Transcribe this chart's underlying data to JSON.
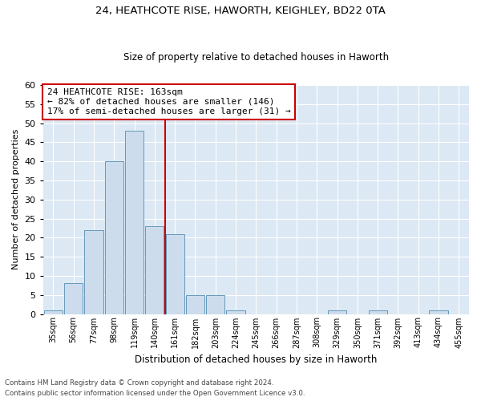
{
  "title1": "24, HEATHCOTE RISE, HAWORTH, KEIGHLEY, BD22 0TA",
  "title2": "Size of property relative to detached houses in Haworth",
  "xlabel": "Distribution of detached houses by size in Haworth",
  "ylabel": "Number of detached properties",
  "bar_labels": [
    "35sqm",
    "56sqm",
    "77sqm",
    "98sqm",
    "119sqm",
    "140sqm",
    "161sqm",
    "182sqm",
    "203sqm",
    "224sqm",
    "245sqm",
    "266sqm",
    "287sqm",
    "308sqm",
    "329sqm",
    "350sqm",
    "371sqm",
    "392sqm",
    "413sqm",
    "434sqm",
    "455sqm"
  ],
  "bar_values": [
    1,
    8,
    22,
    40,
    48,
    23,
    21,
    5,
    5,
    1,
    0,
    0,
    0,
    0,
    1,
    0,
    1,
    0,
    0,
    1,
    0
  ],
  "bar_color": "#ccdcec",
  "bar_edgecolor": "#6699bb",
  "marker_color": "#cc0000",
  "annotation_text": "24 HEATHCOTE RISE: 163sqm\n← 82% of detached houses are smaller (146)\n17% of semi-detached houses are larger (31) →",
  "annotation_box_color": "#ffffff",
  "annotation_box_edgecolor": "#cc0000",
  "ylim": [
    0,
    60
  ],
  "yticks": [
    0,
    5,
    10,
    15,
    20,
    25,
    30,
    35,
    40,
    45,
    50,
    55,
    60
  ],
  "bg_color": "#dce8f4",
  "footer1": "Contains HM Land Registry data © Crown copyright and database right 2024.",
  "footer2": "Contains public sector information licensed under the Open Government Licence v3.0."
}
